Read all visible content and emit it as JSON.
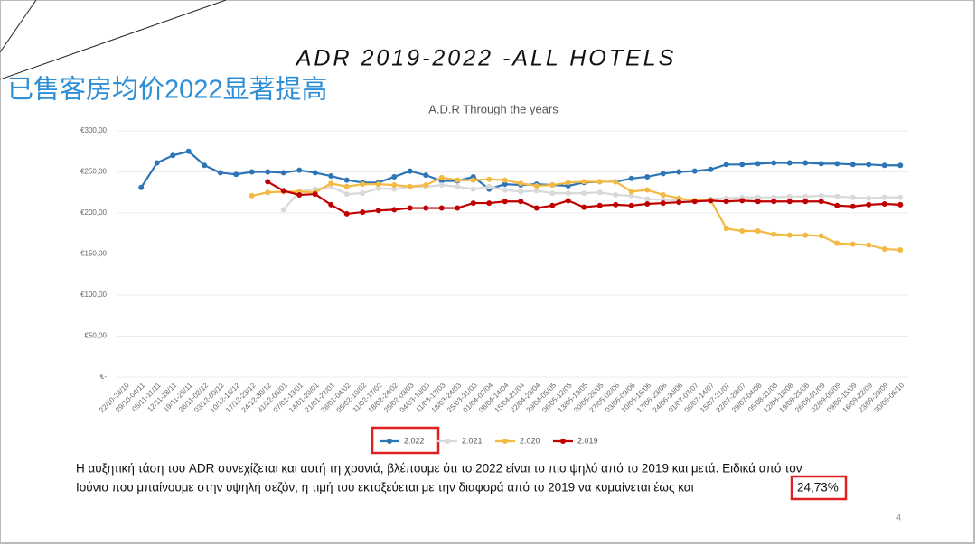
{
  "slide": {
    "title": "ADR 2019-2022 -ALL HOTELS",
    "overlay": "已售客房均价2022显著提高",
    "paragraph": [
      "Η αυξητική τάση του ADR συνεχίζεται και αυτή τη χρονιά, βλέπουμε ότι το 2022 είναι το πιο ψηλό από το 2019 και μετά. Ειδικά από τον",
      "Ιούνιο που μπαίνουμε στην υψηλή σεζόν, η τιμή του εκτοξεύεται με την διαφορά από το 2019 να κυμαίνεται έως και"
    ],
    "highlight": "24,73%",
    "page_number": "4"
  },
  "chart_data": {
    "type": "line",
    "title": "A.D.R Through the years",
    "categories": [
      "22/10-28/10",
      "29/10-04/11",
      "05/11-11/11",
      "12/11-18/11",
      "19/11-25/11",
      "26/11-02/12",
      "03/12-09/12",
      "10/12-16/12",
      "17/12-23/12",
      "24/12-30/12",
      "31/12-06/01",
      "07/01-13/01",
      "14/01-20/01",
      "21/01-27/01",
      "28/01-04/02",
      "05/02-10/02",
      "11/02-17/02",
      "18/02-24/02",
      "25/02-03/03",
      "04/03-10/03",
      "11/03-17/03",
      "18/03-24/03",
      "25/03-31/03",
      "01/04-07/04",
      "08/04-14/04",
      "15/04-21/04",
      "22/04-28/04",
      "29/04-05/05",
      "06/05-12/05",
      "13/05-19/05",
      "20/05-26/05",
      "27/05-02/06",
      "03/06-09/06",
      "10/06-16/06",
      "17/06-23/06",
      "24/06-30/06",
      "01/07-07/07",
      "08/07-14/07",
      "15/07-21/07",
      "22/07-28/07",
      "29/07-04/08",
      "05/08-11/08",
      "12/08-18/08",
      "19/08-25/08",
      "26/08-01/09",
      "02/09-08/09",
      "09/09-15/09",
      "16/09-22/09",
      "23/09-29/09",
      "30/09-06/10"
    ],
    "series": [
      {
        "name": "2.022",
        "color": "#2e75b6",
        "values": [
          null,
          231,
          261,
          270,
          275,
          258,
          249,
          247,
          250,
          250,
          249,
          252,
          249,
          245,
          240,
          237,
          237,
          244,
          251,
          246,
          239,
          239,
          244,
          229,
          235,
          234,
          235,
          234,
          233,
          237,
          238,
          238,
          242,
          244,
          248,
          250,
          251,
          253,
          259,
          259,
          260,
          261,
          261,
          261,
          260,
          260,
          259,
          259,
          258,
          258
        ]
      },
      {
        "name": "2.021",
        "color": "#d9d9d9",
        "values": [
          null,
          null,
          null,
          null,
          null,
          null,
          null,
          null,
          null,
          null,
          204,
          226,
          229,
          232,
          223,
          224,
          230,
          229,
          232,
          232,
          234,
          232,
          229,
          232,
          228,
          226,
          227,
          224,
          224,
          224,
          225,
          222,
          221,
          217,
          216,
          215,
          215,
          217,
          218,
          219,
          219,
          219,
          220,
          220,
          221,
          220,
          219,
          218,
          219,
          219
        ]
      },
      {
        "name": "2.020",
        "color": "#f4b942",
        "values": [
          null,
          null,
          null,
          null,
          null,
          null,
          null,
          null,
          221,
          225,
          226,
          226,
          225,
          236,
          232,
          235,
          235,
          234,
          232,
          234,
          243,
          240,
          240,
          241,
          240,
          236,
          233,
          234,
          237,
          238,
          238,
          238,
          226,
          228,
          222,
          218,
          215,
          216,
          181,
          178,
          178,
          174,
          173,
          173,
          172,
          163,
          162,
          161,
          156,
          155
        ]
      },
      {
        "name": "2.019",
        "color": "#c00000",
        "values": [
          null,
          null,
          null,
          null,
          null,
          null,
          null,
          null,
          null,
          238,
          227,
          222,
          223,
          210,
          199,
          201,
          203,
          204,
          206,
          206,
          206,
          206,
          212,
          212,
          214,
          214,
          206,
          209,
          215,
          207,
          209,
          210,
          209,
          211,
          212,
          213,
          214,
          215,
          214,
          215,
          214,
          214,
          214,
          214,
          214,
          209,
          208,
          210,
          211,
          210
        ]
      }
    ],
    "ylim": [
      0,
      300
    ],
    "yticks": [
      {
        "value": 0,
        "label": "€-"
      },
      {
        "value": 50,
        "label": "€50,00"
      },
      {
        "value": 100,
        "label": "€100,00"
      },
      {
        "value": 150,
        "label": "€150,00"
      },
      {
        "value": 200,
        "label": "€200,00"
      },
      {
        "value": 250,
        "label": "€250,00"
      },
      {
        "value": 300,
        "label": "€300,00"
      }
    ],
    "grid": true
  }
}
